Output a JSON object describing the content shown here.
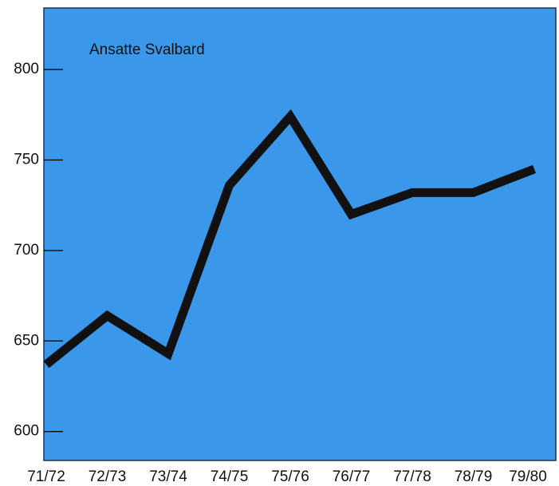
{
  "chart_data": {
    "type": "line",
    "title": "Ansatte Svalbard",
    "categories": [
      "71/72",
      "72/73",
      "73/74",
      "74/75",
      "75/76",
      "76/77",
      "77/78",
      "78/79",
      "79/80"
    ],
    "series": [
      {
        "name": "Ansatte Svalbard",
        "color": "#111111",
        "values": [
          637,
          664,
          643,
          736,
          774,
          720,
          732,
          732,
          745
        ]
      }
    ],
    "ylim": [
      584,
      834
    ],
    "yticks": [
      600,
      650,
      700,
      750,
      800
    ],
    "background": "#3a97ea"
  }
}
